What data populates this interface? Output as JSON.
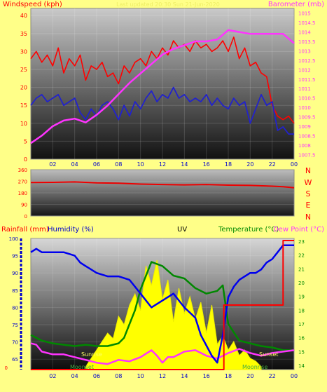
{
  "colors": {
    "background": "#ffff88",
    "windspeed": "#ff0000",
    "windspeed_avg": "#2222cc",
    "barometer": "#ff33ff",
    "wind_dir": "#ee0000",
    "rainfall": "#ff0000",
    "humidity": "#0000ee",
    "uv": "#ffff00",
    "temperature": "#008800",
    "dew_point": "#ff33ff"
  },
  "chart_data": [
    {
      "type": "line",
      "title": "Last updated 20:30 Sun 21-Jun-2020",
      "ylabel": "Windspeed (kph)",
      "y2label": "Barometer (mb)",
      "x_ticks": [
        "02",
        "04",
        "06",
        "08",
        "10",
        "12",
        "14",
        "16",
        "18",
        "20",
        "22",
        "00"
      ],
      "y_ticks": [
        "0",
        "5",
        "10",
        "15",
        "20",
        "25",
        "30",
        "35",
        "40"
      ],
      "y2_ticks": [
        "1007.5",
        "1008",
        "1008.5",
        "1009",
        "1009.5",
        "1010",
        "1010.5",
        "1011",
        "1011.5",
        "1012",
        "1012.5",
        "1013",
        "1013.5",
        "1014",
        "1014.5",
        "1015"
      ],
      "xlim": [
        0,
        24
      ],
      "ylim": [
        0,
        42
      ],
      "y2lim": [
        1007.25,
        1015.25
      ],
      "series": [
        {
          "name": "Wind gust",
          "axis": "left",
          "x": [
            0,
            0.5,
            1,
            1.5,
            2,
            2.5,
            3,
            3.5,
            4,
            4.5,
            5,
            5.5,
            6,
            6.5,
            7,
            7.5,
            8,
            8.5,
            9,
            9.5,
            10,
            10.5,
            11,
            11.5,
            12,
            12.5,
            13,
            13.5,
            14,
            14.5,
            15,
            15.5,
            16,
            16.5,
            17,
            17.5,
            18,
            18.5,
            19,
            19.5,
            20,
            20.5,
            21,
            21.5,
            22,
            22.5,
            23,
            23.5,
            24
          ],
          "values": [
            28,
            30,
            27,
            29,
            26,
            31,
            24,
            28,
            26,
            29,
            22,
            26,
            25,
            27,
            23,
            24,
            21,
            26,
            24,
            27,
            28,
            26,
            30,
            28,
            31,
            29,
            33,
            31,
            32,
            30,
            33,
            31,
            32,
            30,
            31,
            33,
            30,
            34,
            28,
            31,
            26,
            27,
            24,
            23,
            15,
            12,
            11,
            12,
            10
          ]
        },
        {
          "name": "Wind average",
          "axis": "left",
          "x": [
            0,
            0.5,
            1,
            1.5,
            2,
            2.5,
            3,
            3.5,
            4,
            4.5,
            5,
            5.5,
            6,
            6.5,
            7,
            7.5,
            8,
            8.5,
            9,
            9.5,
            10,
            10.5,
            11,
            11.5,
            12,
            12.5,
            13,
            13.5,
            14,
            14.5,
            15,
            15.5,
            16,
            16.5,
            17,
            17.5,
            18,
            18.5,
            19,
            19.5,
            20,
            20.5,
            21,
            21.5,
            22,
            22.5,
            23,
            23.5,
            24
          ],
          "values": [
            15,
            17,
            18,
            16,
            17,
            18,
            15,
            16,
            17,
            13,
            11,
            14,
            12,
            15,
            16,
            14,
            11,
            15,
            12,
            16,
            14,
            17,
            19,
            16,
            18,
            17,
            20,
            17,
            18,
            16,
            17,
            16,
            18,
            15,
            17,
            15,
            14,
            17,
            15,
            16,
            10,
            14,
            18,
            15,
            16,
            8,
            9,
            7,
            7
          ]
        },
        {
          "name": "Barometer",
          "axis": "right",
          "x": [
            0,
            1,
            2,
            3,
            4,
            5,
            6,
            7,
            8,
            9,
            10,
            11,
            12,
            13,
            14,
            15,
            16,
            17,
            18,
            19,
            20,
            21,
            22,
            23,
            23.6,
            24
          ],
          "values": [
            1008.1,
            1008.5,
            1009.0,
            1009.3,
            1009.4,
            1009.2,
            1009.6,
            1010.1,
            1010.7,
            1011.3,
            1011.8,
            1012.3,
            1012.8,
            1013.1,
            1013.3,
            1013.5,
            1013.5,
            1013.6,
            1014.1,
            1014.0,
            1013.9,
            1013.9,
            1013.9,
            1013.9,
            1013.6,
            1013.4
          ]
        }
      ]
    },
    {
      "type": "line",
      "ylabel_ticks": [
        "0",
        "90",
        "180",
        "270",
        "360"
      ],
      "compass": [
        "N",
        "W",
        "S",
        "E",
        "N"
      ],
      "xlim": [
        0,
        24
      ],
      "ylim": [
        0,
        360
      ],
      "series": [
        {
          "name": "Wind direction",
          "x": [
            0,
            2,
            4,
            6,
            8,
            10,
            12,
            14,
            16,
            18,
            20,
            22,
            23,
            24
          ],
          "values": [
            260,
            262,
            265,
            258,
            255,
            248,
            245,
            242,
            245,
            240,
            238,
            232,
            228,
            220
          ]
        }
      ]
    },
    {
      "type": "line",
      "labels": {
        "rainfall": "Rainfall (mm)",
        "humidity": "Humidity (%)",
        "uv": "UV",
        "temperature": "Temperature (°C)",
        "dew_point": "Dew Point (°C)"
      },
      "sun_labels": {
        "sunrise": "Sunrise",
        "sunset": "Sunset",
        "moonset": "Moonset",
        "moonrise": "Moonrise"
      },
      "x_ticks": [
        "02",
        "04",
        "06",
        "08",
        "10",
        "12",
        "14",
        "16",
        "18",
        "20",
        "22",
        "00"
      ],
      "humidity_ticks": [
        "65",
        "70",
        "75",
        "80",
        "85",
        "90",
        "95",
        "100"
      ],
      "rain_ticks": [
        "0"
      ],
      "temp_ticks": [
        "14",
        "15",
        "16",
        "17",
        "18",
        "19",
        "20",
        "21",
        "22",
        "23"
      ],
      "xlim": [
        0,
        24
      ],
      "humidity_lim": [
        62,
        100
      ],
      "temp_lim": [
        13.7,
        23.2
      ],
      "series": [
        {
          "name": "Humidity",
          "axis": "humidity",
          "x": [
            0,
            0.5,
            1,
            2,
            3,
            4,
            4.5,
            5,
            6,
            7,
            8,
            9,
            10,
            11,
            12,
            13,
            14,
            15,
            15.5,
            16,
            16.5,
            17,
            17.5,
            18,
            18.5,
            19,
            20,
            20.5,
            21,
            21.5,
            22,
            22.5,
            23,
            24
          ],
          "values": [
            96,
            97,
            96,
            96,
            96,
            95,
            93,
            92,
            90,
            89,
            89,
            88,
            84,
            80,
            82,
            84,
            80,
            77,
            72,
            69,
            66,
            64,
            72,
            83,
            86,
            88,
            90,
            90,
            91,
            93,
            94,
            96,
            98,
            98
          ]
        },
        {
          "name": "Temperature",
          "axis": "temp",
          "x": [
            0,
            1,
            2,
            3,
            4,
            5,
            6,
            7,
            8,
            8.5,
            9,
            9.5,
            10,
            10.5,
            11,
            12,
            13,
            14,
            15,
            16,
            17,
            17.5,
            18,
            19,
            20,
            21,
            22,
            23,
            24
          ],
          "values": [
            16.2,
            15.8,
            15.6,
            15.5,
            15.4,
            15.5,
            15.4,
            15.4,
            15.6,
            16.0,
            17.0,
            18.0,
            19.5,
            20.5,
            21.5,
            21.2,
            20.5,
            20.3,
            19.6,
            19.2,
            19.4,
            19.8,
            17.0,
            15.8,
            15.6,
            15.4,
            15.3,
            15.1,
            15.1
          ]
        },
        {
          "name": "Dew Point",
          "axis": "temp",
          "x": [
            0,
            0.5,
            1,
            2,
            3,
            4,
            5,
            6,
            7,
            8,
            9,
            10,
            11,
            11.5,
            12,
            12.5,
            13,
            14,
            15,
            16,
            17,
            18,
            19,
            20,
            21,
            22,
            23,
            24
          ],
          "values": [
            15.6,
            15.5,
            15.0,
            14.8,
            14.8,
            14.6,
            14.4,
            14.2,
            14.1,
            14.4,
            14.3,
            14.6,
            15.1,
            14.7,
            14.2,
            14.6,
            14.6,
            15.0,
            15.1,
            14.7,
            14.5,
            14.9,
            15.2,
            14.9,
            14.7,
            14.9,
            15.0,
            15.1
          ]
        },
        {
          "name": "Rainfall",
          "axis": "rain",
          "x": [
            0,
            17.6,
            17.6,
            23.0,
            23.0,
            24
          ],
          "values": [
            0,
            0,
            1,
            1,
            2,
            2
          ]
        },
        {
          "name": "UV",
          "axis": "uv",
          "x": [
            5.0,
            5.5,
            6,
            6.5,
            7,
            7.5,
            8,
            8.5,
            9,
            9.5,
            10,
            10.5,
            11,
            11.5,
            12,
            12.5,
            13,
            13.5,
            14,
            14.5,
            15,
            15.5,
            16,
            16.5,
            17,
            17.5,
            18,
            18.5,
            19,
            19.5,
            20,
            20.5,
            21
          ],
          "values": [
            0.2,
            0.8,
            1.4,
            2.0,
            2.6,
            2.2,
            3.8,
            3.2,
            4.6,
            5.4,
            4.2,
            7.4,
            6.0,
            7.8,
            5.0,
            6.4,
            3.4,
            5.8,
            4.0,
            5.2,
            3.6,
            4.8,
            2.6,
            4.6,
            1.8,
            2.4,
            1.4,
            2.0,
            1.0,
            1.4,
            0.8,
            0.6,
            0.2
          ]
        }
      ]
    }
  ]
}
